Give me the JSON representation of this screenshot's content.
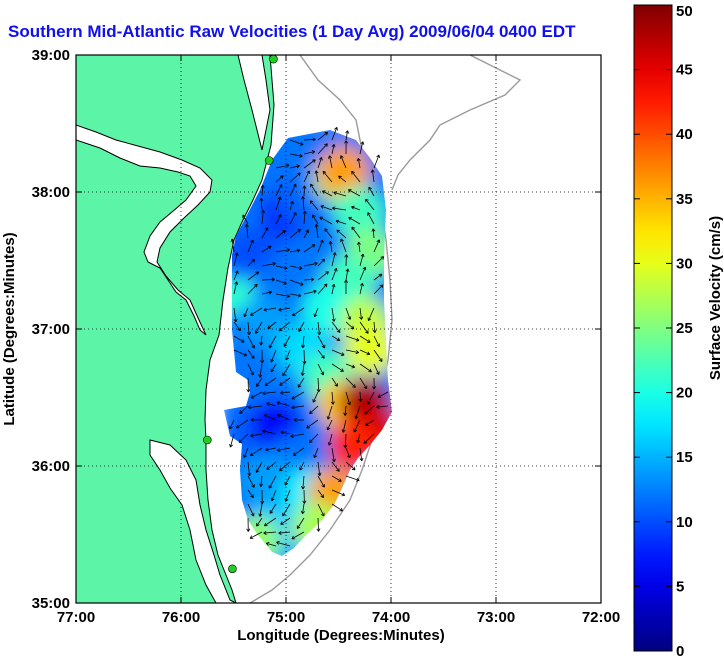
{
  "title": "Southern Mid-Atlantic Raw Velocities (1 Day Avg) 2009/06/04 0400 EDT",
  "colors": {
    "title": "#1010ee",
    "land": "#5cf5a8",
    "coast_line": "#000000",
    "bathymetry": "#9a9a9a",
    "station": "#22cc22",
    "grid": "#000000"
  },
  "chart_data": {
    "type": "heatmap",
    "title": "Southern Mid-Atlantic Raw Velocities (1 Day Avg) 2009/06/04 0400 EDT",
    "xlabel": "Longitude (Degrees:Minutes)",
    "ylabel": "Latitude (Degrees:Minutes)",
    "xlim": [
      -77,
      -72
    ],
    "ylim": [
      35,
      39
    ],
    "x_ticks": [
      -77,
      -76,
      -75,
      -74,
      -73,
      -72
    ],
    "x_tick_labels": [
      "77:00",
      "76:00",
      "75:00",
      "74:00",
      "73:00",
      "72:00"
    ],
    "y_ticks": [
      35,
      36,
      37,
      38,
      39
    ],
    "y_tick_labels": [
      "35:00",
      "36:00",
      "37:00",
      "38:00",
      "39:00"
    ],
    "grid": true,
    "colorbar": {
      "label": "Surface Velocity (cm/s)",
      "min": 0,
      "max": 50,
      "ticks": [
        0,
        5,
        10,
        15,
        20,
        25,
        30,
        35,
        40,
        45,
        50
      ],
      "tick_labels": [
        "0",
        "5",
        "10",
        "15",
        "20",
        "25",
        "30",
        "35",
        "40",
        "45",
        "50"
      ],
      "colormap": "jet"
    },
    "stations": [
      {
        "lon": -75.12,
        "lat": 38.97
      },
      {
        "lon": -75.16,
        "lat": 38.23
      },
      {
        "lon": -75.75,
        "lat": 36.19
      },
      {
        "lon": -75.51,
        "lat": 35.25
      }
    ],
    "velocity_samples": [
      {
        "lon": -75.55,
        "lat": 37.3,
        "speed": 21
      },
      {
        "lon": -75.5,
        "lat": 37.55,
        "speed": 11
      },
      {
        "lon": -75.3,
        "lat": 37.55,
        "speed": 10
      },
      {
        "lon": -75.0,
        "lat": 37.85,
        "speed": 8
      },
      {
        "lon": -74.85,
        "lat": 37.95,
        "speed": 11
      },
      {
        "lon": -74.65,
        "lat": 38.05,
        "speed": 12
      },
      {
        "lon": -74.5,
        "lat": 38.1,
        "speed": 26
      },
      {
        "lon": -74.45,
        "lat": 38.15,
        "speed": 36
      },
      {
        "lon": -74.3,
        "lat": 37.85,
        "speed": 22
      },
      {
        "lon": -74.2,
        "lat": 37.55,
        "speed": 25
      },
      {
        "lon": -74.4,
        "lat": 37.35,
        "speed": 22
      },
      {
        "lon": -74.6,
        "lat": 37.15,
        "speed": 20
      },
      {
        "lon": -74.25,
        "lat": 37.05,
        "speed": 28
      },
      {
        "lon": -74.2,
        "lat": 36.85,
        "speed": 30
      },
      {
        "lon": -75.0,
        "lat": 37.35,
        "speed": 12
      },
      {
        "lon": -75.2,
        "lat": 37.05,
        "speed": 14
      },
      {
        "lon": -74.85,
        "lat": 36.85,
        "speed": 17
      },
      {
        "lon": -74.6,
        "lat": 36.65,
        "speed": 22
      },
      {
        "lon": -74.45,
        "lat": 36.45,
        "speed": 34
      },
      {
        "lon": -74.25,
        "lat": 36.45,
        "speed": 48
      },
      {
        "lon": -74.15,
        "lat": 36.25,
        "speed": 46
      },
      {
        "lon": -74.35,
        "lat": 36.15,
        "speed": 42
      },
      {
        "lon": -75.4,
        "lat": 36.25,
        "speed": 11
      },
      {
        "lon": -75.1,
        "lat": 36.3,
        "speed": 6
      },
      {
        "lon": -74.9,
        "lat": 36.05,
        "speed": 12
      },
      {
        "lon": -75.2,
        "lat": 35.9,
        "speed": 14
      },
      {
        "lon": -74.8,
        "lat": 35.8,
        "speed": 18
      },
      {
        "lon": -74.55,
        "lat": 35.8,
        "speed": 36
      },
      {
        "lon": -75.1,
        "lat": 35.55,
        "speed": 16
      },
      {
        "lon": -74.7,
        "lat": 35.55,
        "speed": 27
      },
      {
        "lon": -75.2,
        "lat": 35.3,
        "speed": 15
      },
      {
        "lon": -75.3,
        "lat": 35.45,
        "speed": 26
      }
    ]
  }
}
